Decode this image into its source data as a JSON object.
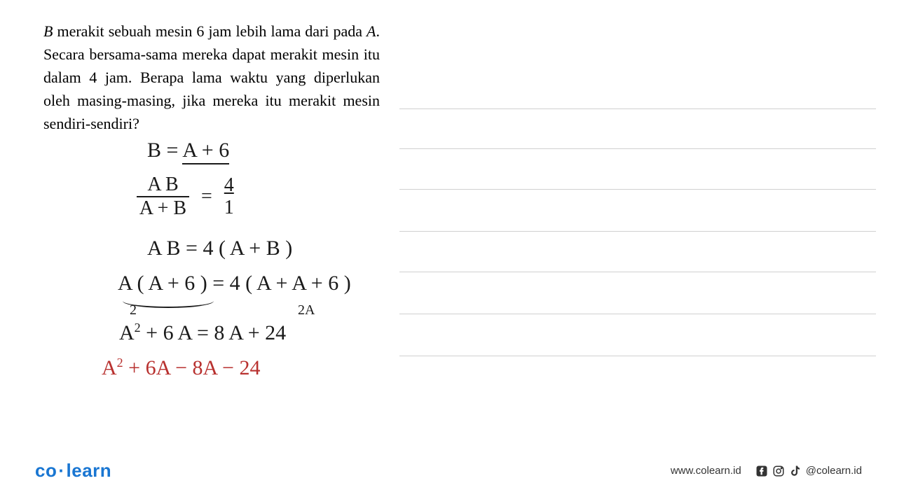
{
  "problem": {
    "text_html": "<em>B</em> merakit sebuah mesin 6 jam lebih lama dari pada <em>A</em>. Secara bersama-sama mereka dapat merakit mesin itu dalam 4 jam. Berapa lama waktu yang diperlukan oleh masing-masing, jika mereka itu merakit mesin sendiri-sendiri?",
    "font_size": 22,
    "color": "#000000"
  },
  "handwriting": {
    "color_main": "#1a1a1a",
    "color_accent": "#b8312f",
    "lines": {
      "eq1": "B = A + 6",
      "eq2_num": "A B",
      "eq2_den": "A + B",
      "eq2_eq": "=",
      "eq2_rnum": "4",
      "eq2_rden": "1",
      "eq3": "A B   = 4 ( A + B )",
      "eq4": "A ( A + 6 ) = 4 ( A + A + 6 )",
      "annot1": "2",
      "annot2": "2A",
      "eq5_a": "A",
      "eq5_sup": "2",
      "eq5_rest": " + 6 A = 8 A + 24",
      "eq6_a": "A",
      "eq6_sup": "2",
      "eq6_rest": " + 6A − 8A  − 24"
    }
  },
  "ruled_lines": {
    "color": "#d0d0d0",
    "positions": [
      155,
      212,
      270,
      330,
      388,
      448,
      508
    ]
  },
  "footer": {
    "logo_co": "co",
    "logo_learn": "learn",
    "logo_color": "#1976d2",
    "website": "www.colearn.id",
    "handle": "@colearn.id",
    "text_color": "#333333"
  }
}
